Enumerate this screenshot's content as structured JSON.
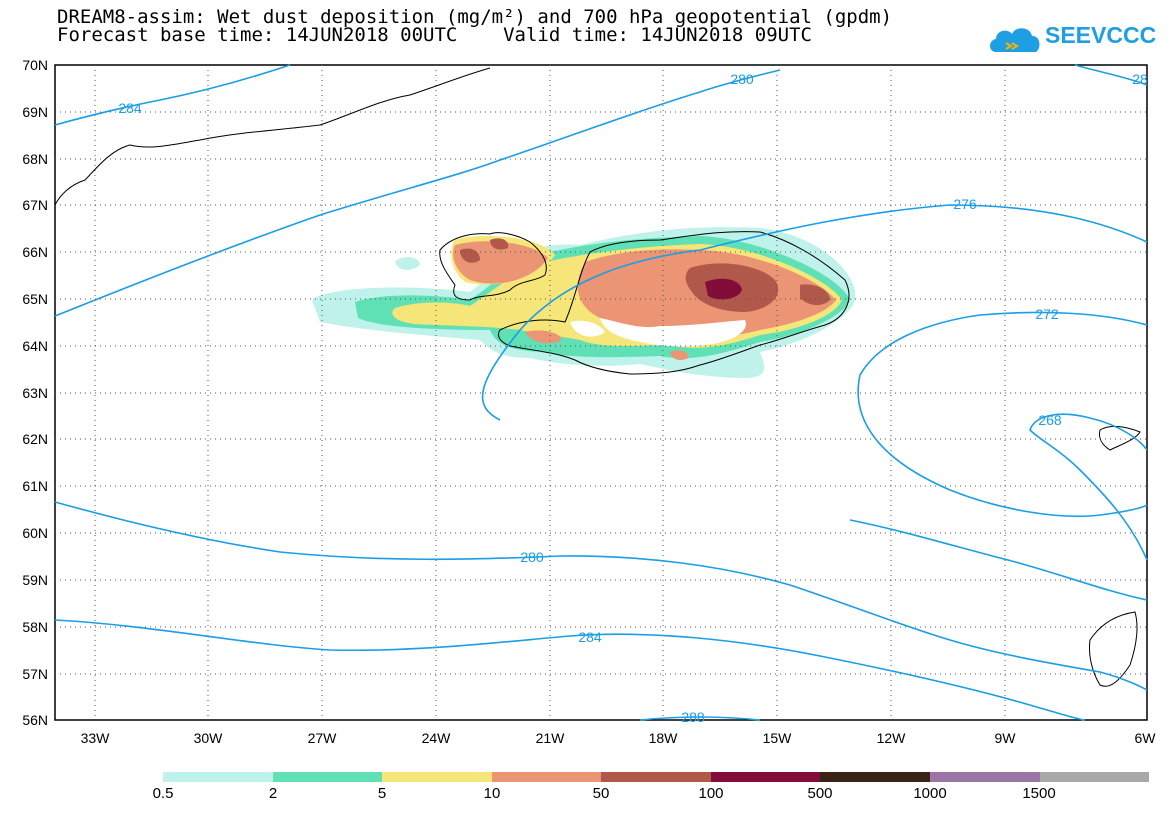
{
  "title": {
    "line1": "DREAM8-assim: Wet dust deposition (mg/m²) and 700 hPa geopotential (gpdm)",
    "line2": "Forecast base time: 14JUN2018 00UTC    Valid time: 14JUN2018 09UTC"
  },
  "logo": {
    "text": "SEEVCCC",
    "icon": "cloud-logo-icon"
  },
  "axes": {
    "lat_labels": [
      "70N",
      "69N",
      "68N",
      "67N",
      "66N",
      "65N",
      "64N",
      "63N",
      "62N",
      "61N",
      "60N",
      "59N",
      "58N",
      "57N",
      "56N"
    ],
    "lon_labels": [
      "33W",
      "30W",
      "27W",
      "24W",
      "21W",
      "18W",
      "15W",
      "12W",
      "9W",
      "6W"
    ],
    "lat_range": [
      56,
      70
    ],
    "lon_range": [
      -34.2,
      -6
    ]
  },
  "contour_labels": [
    "284",
    "280",
    "276",
    "272",
    "268",
    "280",
    "284",
    "288",
    "28"
  ],
  "colorbar": {
    "labels": [
      "0.5",
      "2",
      "5",
      "10",
      "50",
      "100",
      "500",
      "1000",
      "1500"
    ],
    "colors": [
      "#bff2ea",
      "#5fe0b5",
      "#f6e67a",
      "#eb9575",
      "#b0584a",
      "#820c3a",
      "#3b2417",
      "#9c74a6",
      "#a8a8a8"
    ]
  },
  "colors": {
    "contour": "#1a9ee6",
    "grid": "#555555",
    "coast": "#000000"
  }
}
